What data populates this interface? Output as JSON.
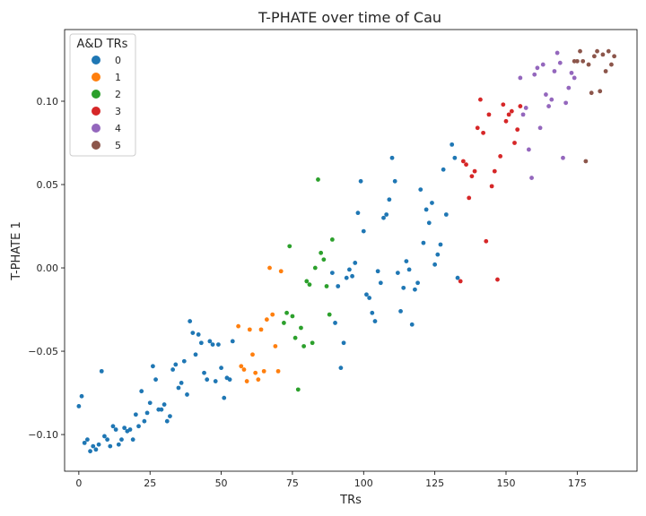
{
  "chart_data": {
    "type": "scatter",
    "title": "T-PHATE over time of Cau",
    "xlabel": "TRs",
    "ylabel": "T-PHATE 1",
    "xlim": [
      -5,
      196
    ],
    "ylim": [
      -0.122,
      0.143
    ],
    "xticks": [
      0,
      25,
      50,
      75,
      100,
      125,
      150,
      175
    ],
    "yticks": [
      -0.1,
      -0.05,
      0.0,
      0.05,
      0.1
    ],
    "ytick_labels": [
      "−0.10",
      "−0.05",
      "0.00",
      "0.05",
      "0.10"
    ],
    "grid": false,
    "legend": {
      "title": "A&D TRs",
      "placement": "top-left",
      "entries": [
        {
          "label": "0",
          "color": "#1f77b4"
        },
        {
          "label": "1",
          "color": "#ff7f0e"
        },
        {
          "label": "2",
          "color": "#2ca02c"
        },
        {
          "label": "3",
          "color": "#d62728"
        },
        {
          "label": "4",
          "color": "#9467bd"
        },
        {
          "label": "5",
          "color": "#8c564b"
        }
      ]
    },
    "series": [
      {
        "name": "0",
        "color": "#1f77b4",
        "points": [
          [
            0,
            -0.083
          ],
          [
            1,
            -0.077
          ],
          [
            2,
            -0.105
          ],
          [
            3,
            -0.103
          ],
          [
            4,
            -0.11
          ],
          [
            5,
            -0.107
          ],
          [
            6,
            -0.109
          ],
          [
            7,
            -0.106
          ],
          [
            8,
            -0.062
          ],
          [
            9,
            -0.101
          ],
          [
            10,
            -0.103
          ],
          [
            11,
            -0.107
          ],
          [
            12,
            -0.095
          ],
          [
            13,
            -0.097
          ],
          [
            14,
            -0.106
          ],
          [
            15,
            -0.103
          ],
          [
            16,
            -0.096
          ],
          [
            17,
            -0.098
          ],
          [
            18,
            -0.097
          ],
          [
            19,
            -0.103
          ],
          [
            20,
            -0.088
          ],
          [
            21,
            -0.095
          ],
          [
            22,
            -0.074
          ],
          [
            23,
            -0.092
          ],
          [
            24,
            -0.087
          ],
          [
            25,
            -0.081
          ],
          [
            26,
            -0.059
          ],
          [
            27,
            -0.067
          ],
          [
            28,
            -0.085
          ],
          [
            29,
            -0.085
          ],
          [
            30,
            -0.082
          ],
          [
            31,
            -0.092
          ],
          [
            32,
            -0.089
          ],
          [
            33,
            -0.061
          ],
          [
            34,
            -0.058
          ],
          [
            35,
            -0.072
          ],
          [
            36,
            -0.069
          ],
          [
            37,
            -0.056
          ],
          [
            38,
            -0.076
          ],
          [
            39,
            -0.032
          ],
          [
            40,
            -0.039
          ],
          [
            41,
            -0.052
          ],
          [
            42,
            -0.04
          ],
          [
            43,
            -0.045
          ],
          [
            44,
            -0.063
          ],
          [
            45,
            -0.067
          ],
          [
            46,
            -0.044
          ],
          [
            47,
            -0.046
          ],
          [
            48,
            -0.068
          ],
          [
            49,
            -0.046
          ],
          [
            50,
            -0.06
          ],
          [
            51,
            -0.078
          ],
          [
            52,
            -0.066
          ],
          [
            53,
            -0.067
          ],
          [
            54,
            -0.044
          ],
          [
            92,
            -0.06
          ],
          [
            89,
            -0.003
          ],
          [
            90,
            -0.033
          ],
          [
            91,
            -0.011
          ],
          [
            93,
            -0.045
          ],
          [
            94,
            -0.006
          ],
          [
            95,
            -0.001
          ],
          [
            96,
            -0.005
          ],
          [
            97,
            0.003
          ],
          [
            98,
            0.033
          ],
          [
            99,
            0.052
          ],
          [
            100,
            0.022
          ],
          [
            101,
            -0.016
          ],
          [
            102,
            -0.018
          ],
          [
            103,
            -0.027
          ],
          [
            104,
            -0.032
          ],
          [
            105,
            -0.002
          ],
          [
            106,
            -0.009
          ],
          [
            107,
            0.03
          ],
          [
            108,
            0.032
          ],
          [
            109,
            0.041
          ],
          [
            110,
            0.066
          ],
          [
            111,
            0.052
          ],
          [
            112,
            -0.003
          ],
          [
            113,
            -0.026
          ],
          [
            114,
            -0.012
          ],
          [
            115,
            0.004
          ],
          [
            116,
            -0.001
          ],
          [
            117,
            -0.034
          ],
          [
            118,
            -0.013
          ],
          [
            119,
            -0.009
          ],
          [
            120,
            0.047
          ],
          [
            121,
            0.015
          ],
          [
            122,
            0.035
          ],
          [
            123,
            0.027
          ],
          [
            124,
            0.039
          ],
          [
            125,
            0.002
          ],
          [
            126,
            0.008
          ],
          [
            127,
            0.014
          ],
          [
            128,
            0.059
          ],
          [
            129,
            0.032
          ],
          [
            131,
            0.074
          ],
          [
            132,
            0.066
          ],
          [
            133,
            -0.006
          ]
        ]
      },
      {
        "name": "1",
        "color": "#ff7f0e",
        "points": [
          [
            56,
            -0.035
          ],
          [
            57,
            -0.059
          ],
          [
            58,
            -0.061
          ],
          [
            59,
            -0.068
          ],
          [
            60,
            -0.037
          ],
          [
            61,
            -0.052
          ],
          [
            62,
            -0.063
          ],
          [
            63,
            -0.067
          ],
          [
            64,
            -0.037
          ],
          [
            65,
            -0.062
          ],
          [
            66,
            -0.031
          ],
          [
            67,
            0.0
          ],
          [
            68,
            -0.028
          ],
          [
            69,
            -0.047
          ],
          [
            70,
            -0.062
          ],
          [
            71,
            -0.002
          ]
        ]
      },
      {
        "name": "2",
        "color": "#2ca02c",
        "points": [
          [
            72,
            -0.033
          ],
          [
            73,
            -0.027
          ],
          [
            74,
            0.013
          ],
          [
            75,
            -0.029
          ],
          [
            76,
            -0.042
          ],
          [
            77,
            -0.073
          ],
          [
            78,
            -0.036
          ],
          [
            79,
            -0.047
          ],
          [
            80,
            -0.008
          ],
          [
            81,
            -0.01
          ],
          [
            82,
            -0.045
          ],
          [
            83,
            0.0
          ],
          [
            84,
            0.053
          ],
          [
            85,
            0.009
          ],
          [
            86,
            0.005
          ],
          [
            87,
            -0.011
          ],
          [
            88,
            -0.028
          ],
          [
            89,
            0.017
          ]
        ]
      },
      {
        "name": "3",
        "color": "#d62728",
        "points": [
          [
            134,
            -0.008
          ],
          [
            135,
            0.064
          ],
          [
            136,
            0.062
          ],
          [
            137,
            0.042
          ],
          [
            138,
            0.055
          ],
          [
            139,
            0.058
          ],
          [
            140,
            0.084
          ],
          [
            141,
            0.101
          ],
          [
            142,
            0.081
          ],
          [
            143,
            0.016
          ],
          [
            144,
            0.092
          ],
          [
            145,
            0.049
          ],
          [
            146,
            0.058
          ],
          [
            147,
            -0.007
          ],
          [
            148,
            0.067
          ],
          [
            149,
            0.098
          ],
          [
            150,
            0.088
          ],
          [
            151,
            0.092
          ],
          [
            152,
            0.094
          ],
          [
            153,
            0.075
          ],
          [
            154,
            0.083
          ],
          [
            155,
            0.097
          ]
        ]
      },
      {
        "name": "4",
        "color": "#9467bd",
        "points": [
          [
            155,
            0.114
          ],
          [
            156,
            0.092
          ],
          [
            157,
            0.096
          ],
          [
            158,
            0.071
          ],
          [
            159,
            0.054
          ],
          [
            160,
            0.116
          ],
          [
            161,
            0.12
          ],
          [
            162,
            0.084
          ],
          [
            163,
            0.122
          ],
          [
            164,
            0.104
          ],
          [
            165,
            0.097
          ],
          [
            166,
            0.101
          ],
          [
            167,
            0.118
          ],
          [
            168,
            0.129
          ],
          [
            169,
            0.123
          ],
          [
            170,
            0.066
          ],
          [
            171,
            0.099
          ],
          [
            172,
            0.108
          ],
          [
            173,
            0.117
          ],
          [
            174,
            0.114
          ]
        ]
      },
      {
        "name": "5",
        "color": "#8c564b",
        "points": [
          [
            175,
            0.124
          ],
          [
            176,
            0.13
          ],
          [
            177,
            0.124
          ],
          [
            178,
            0.064
          ],
          [
            179,
            0.122
          ],
          [
            180,
            0.105
          ],
          [
            181,
            0.127
          ],
          [
            182,
            0.13
          ],
          [
            183,
            0.106
          ],
          [
            184,
            0.128
          ],
          [
            185,
            0.118
          ],
          [
            186,
            0.13
          ],
          [
            187,
            0.122
          ],
          [
            188,
            0.127
          ],
          [
            174,
            0.124
          ]
        ]
      }
    ]
  }
}
